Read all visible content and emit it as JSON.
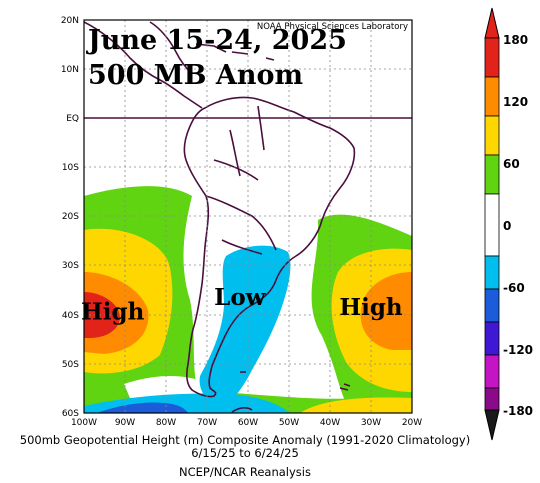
{
  "map": {
    "title_line1": "June 15-24, 2025",
    "title_line2": "500 MB Anom",
    "lab_credit": "NOAA Physical Sciences Laboratory",
    "lat_labels": [
      "20N",
      "10N",
      "EQ",
      "10S",
      "20S",
      "30S",
      "40S",
      "50S",
      "60S"
    ],
    "lon_labels": [
      "100W",
      "90W",
      "80W",
      "70W",
      "60W",
      "50W",
      "40W",
      "30W",
      "20W"
    ],
    "features": [
      {
        "label": "High",
        "lat": -41,
        "lon": -93
      },
      {
        "label": "Low",
        "lat": -38,
        "lon": -62
      },
      {
        "label": "High",
        "lat": -40,
        "lon": -30
      }
    ],
    "caption_line1": "500mb Geopotential Height (m) Composite Anomaly (1991-2020 Climatology)",
    "caption_line2": "6/15/25  to  6/24/25",
    "caption_line3": "NCEP/NCAR Reanalysis"
  },
  "colorbar": {
    "labels": [
      "180",
      "120",
      "60",
      "0",
      "-60",
      "-120",
      "-180"
    ],
    "colors": [
      "#e2231a",
      "#ff8c00",
      "#ffd700",
      "#60d410",
      "#ffffff",
      "#00bfef",
      "#1c5bd9",
      "#3f18d6",
      "#c415c4",
      "#8a0a8a"
    ]
  }
}
